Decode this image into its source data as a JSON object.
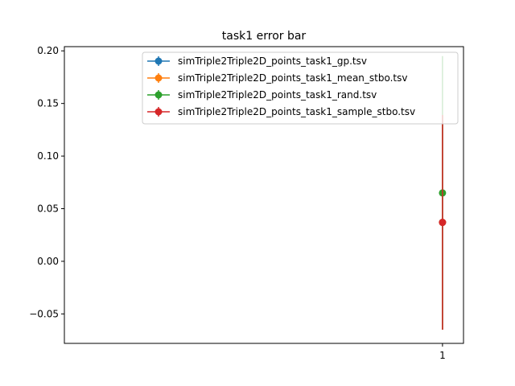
{
  "chart_data": {
    "type": "errorbar",
    "title": "task1 error bar",
    "xlabel": "",
    "ylabel": "",
    "x_ticks": [
      "1"
    ],
    "x_range": [
      0.1,
      1.05
    ],
    "ylim": [
      -0.078,
      0.204
    ],
    "y_ticks": [
      -0.05,
      0.0,
      0.05,
      0.1,
      0.15,
      0.2
    ],
    "y_tick_labels": [
      "−0.05",
      "0.00",
      "0.05",
      "0.10",
      "0.15",
      "0.20"
    ],
    "grid": false,
    "legend_position": "top-right",
    "series": [
      {
        "name": "simTriple2Triple2D_points_task1_gp.tsv",
        "color": "#1f77b4",
        "x": [
          1
        ],
        "y": [
          0.037
        ],
        "err": [
          0.102
        ]
      },
      {
        "name": "simTriple2Triple2D_points_task1_mean_stbo.tsv",
        "color": "#ff7f0e",
        "x": [
          1
        ],
        "y": [
          0.037
        ],
        "err": [
          0.102
        ]
      },
      {
        "name": "simTriple2Triple2D_points_task1_rand.tsv",
        "color": "#2ca02c",
        "x": [
          1
        ],
        "y": [
          0.065
        ],
        "err": [
          0.13
        ]
      },
      {
        "name": "simTriple2Triple2D_points_task1_sample_stbo.tsv",
        "color": "#d62728",
        "x": [
          1
        ],
        "y": [
          0.037
        ],
        "err": [
          0.102
        ]
      }
    ]
  }
}
